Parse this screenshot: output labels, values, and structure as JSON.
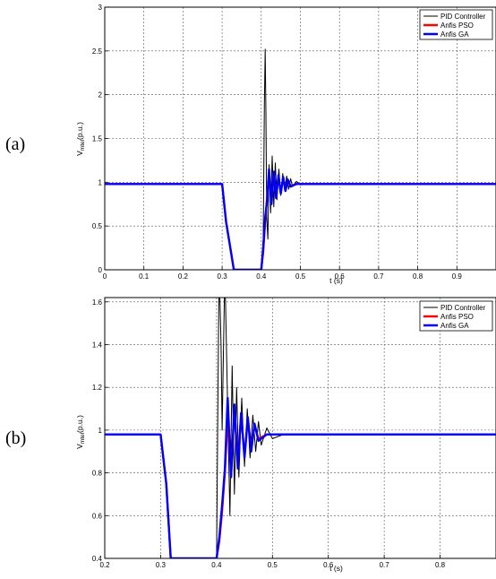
{
  "panels": {
    "a_label": "(a)",
    "b_label": "(b)"
  },
  "chart_data": [
    {
      "type": "line",
      "xlabel": "t (s)",
      "ylabel": "V_mtel(p.u.)",
      "xlim": [
        0,
        1
      ],
      "ylim": [
        0,
        3
      ],
      "xticks": [
        "0",
        "0.1",
        "0.2",
        "0.3",
        "0.4",
        "0.5",
        "0.6",
        "0.7",
        "0.8",
        "0.9"
      ],
      "yticks": [
        "0",
        "0.5",
        "1",
        "1.5",
        "2",
        "2.5",
        "3"
      ],
      "grid": true,
      "legend": "top-right",
      "series": [
        {
          "name": "PID Controller",
          "color": "#000000",
          "x": [
            0,
            0.3,
            0.31,
            0.33,
            0.4,
            0.405,
            0.408,
            0.41,
            0.412,
            0.414,
            0.417,
            0.42,
            0.424,
            0.428,
            0.432,
            0.436,
            0.44,
            0.445,
            0.45,
            0.455,
            0.46,
            0.465,
            0.47,
            0.475,
            0.48,
            0.49,
            0.5,
            0.52,
            0.55,
            1.0
          ],
          "y": [
            0.98,
            0.98,
            0.55,
            0.0,
            0.0,
            0.35,
            1.9,
            2.52,
            1.8,
            0.6,
            0.35,
            1.2,
            0.65,
            1.3,
            0.72,
            1.22,
            0.8,
            1.15,
            0.85,
            1.1,
            0.9,
            1.07,
            0.92,
            1.04,
            0.95,
            1.01,
            0.97,
            0.98,
            0.98,
            0.98
          ]
        },
        {
          "name": "Anfis PSO",
          "color": "#ff0000",
          "x": [
            0,
            0.3,
            0.31,
            0.33,
            0.4,
            0.405,
            0.41,
            0.415,
            0.42,
            0.426,
            0.432,
            0.438,
            0.444,
            0.45,
            0.456,
            0.462,
            0.468,
            0.475,
            0.49,
            0.52,
            1.0
          ],
          "y": [
            0.98,
            0.98,
            0.55,
            0.0,
            0.0,
            0.2,
            0.55,
            0.85,
            1.08,
            0.8,
            1.1,
            0.85,
            1.07,
            0.88,
            1.05,
            0.92,
            1.02,
            0.96,
            0.98,
            0.98,
            0.98
          ]
        },
        {
          "name": "Anfis GA",
          "color": "#0000ff",
          "x": [
            0,
            0.3,
            0.31,
            0.33,
            0.4,
            0.405,
            0.41,
            0.415,
            0.42,
            0.426,
            0.432,
            0.438,
            0.444,
            0.45,
            0.456,
            0.462,
            0.468,
            0.475,
            0.49,
            0.52,
            1.0
          ],
          "y": [
            0.98,
            0.98,
            0.55,
            0.0,
            0.0,
            0.25,
            0.6,
            0.8,
            1.15,
            0.75,
            1.12,
            0.82,
            1.08,
            0.87,
            1.06,
            0.9,
            1.03,
            0.95,
            0.98,
            0.98,
            0.98
          ]
        }
      ]
    },
    {
      "type": "line",
      "xlabel": "t (s)",
      "ylabel": "V_mtel(p.u.)",
      "xlim": [
        0.2,
        0.9
      ],
      "ylim": [
        0.4,
        1.62
      ],
      "xticks": [
        "0.2",
        "0.3",
        "0.4",
        "0.5",
        "0.6",
        "0.7",
        "0.8"
      ],
      "yticks": [
        "0.4",
        "0.6",
        "0.8",
        "1",
        "1.2",
        "1.4",
        "1.6"
      ],
      "grid": true,
      "legend": "top-right",
      "series": [
        {
          "name": "PID Controller",
          "color": "#000000",
          "x": [
            0.2,
            0.3,
            0.31,
            0.318,
            0.4,
            0.402,
            0.404,
            0.406,
            0.408,
            0.41,
            0.412,
            0.414,
            0.416,
            0.42,
            0.424,
            0.428,
            0.432,
            0.436,
            0.44,
            0.445,
            0.45,
            0.455,
            0.46,
            0.465,
            0.47,
            0.475,
            0.48,
            0.49,
            0.5,
            0.52,
            0.55,
            0.9
          ],
          "y": [
            0.98,
            0.98,
            0.75,
            0.4,
            0.4,
            1.0,
            1.62,
            1.62,
            1.4,
            1.0,
            1.3,
            1.62,
            1.62,
            1.1,
            0.6,
            1.3,
            0.7,
            1.2,
            0.78,
            1.15,
            0.83,
            1.1,
            0.87,
            1.07,
            0.9,
            1.04,
            0.93,
            1.01,
            0.96,
            0.98,
            0.98,
            0.98
          ]
        },
        {
          "name": "Anfis PSO",
          "color": "#ff0000",
          "x": [
            0.2,
            0.3,
            0.31,
            0.318,
            0.4,
            0.405,
            0.41,
            0.415,
            0.42,
            0.426,
            0.432,
            0.438,
            0.444,
            0.45,
            0.456,
            0.462,
            0.468,
            0.475,
            0.49,
            0.52,
            0.9
          ],
          "y": [
            0.98,
            0.98,
            0.75,
            0.4,
            0.4,
            0.48,
            0.62,
            0.8,
            1.05,
            0.8,
            1.1,
            0.85,
            1.07,
            0.88,
            1.05,
            0.92,
            1.02,
            0.96,
            0.98,
            0.98,
            0.98
          ]
        },
        {
          "name": "Anfis GA",
          "color": "#0000ff",
          "x": [
            0.2,
            0.3,
            0.31,
            0.318,
            0.4,
            0.405,
            0.41,
            0.415,
            0.42,
            0.426,
            0.432,
            0.438,
            0.444,
            0.45,
            0.456,
            0.462,
            0.468,
            0.475,
            0.49,
            0.52,
            0.9
          ],
          "y": [
            0.98,
            0.98,
            0.75,
            0.4,
            0.4,
            0.5,
            0.65,
            0.82,
            1.15,
            0.78,
            1.12,
            0.82,
            1.08,
            0.87,
            1.06,
            0.9,
            1.03,
            0.95,
            0.98,
            0.98,
            0.98
          ]
        }
      ]
    }
  ]
}
